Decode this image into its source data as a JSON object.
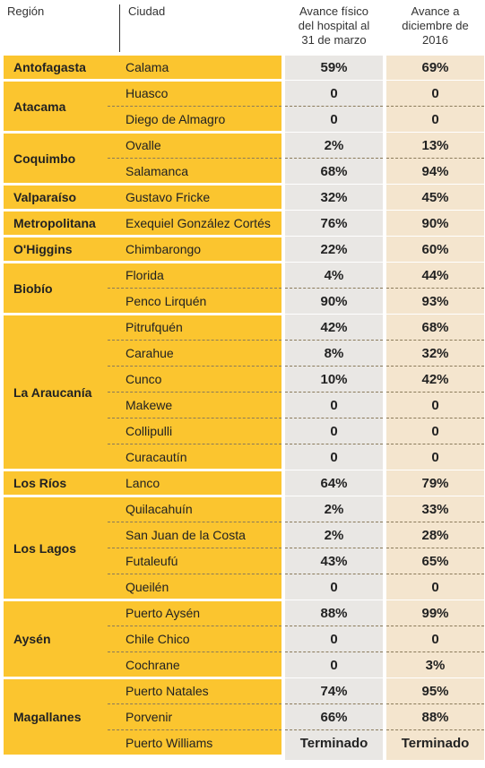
{
  "table": {
    "header": [
      "Región",
      "Ciudad",
      "Avance físico del hospital al 31 de marzo",
      "Avance a diciembre de 2016"
    ],
    "groups": [
      {
        "region": "Antofagasta",
        "rows": [
          [
            "Calama",
            "59%",
            "69%"
          ]
        ]
      },
      {
        "region": "Atacama",
        "rows": [
          [
            "Huasco",
            "0",
            "0"
          ],
          [
            "Diego de Almagro",
            "0",
            "0"
          ]
        ]
      },
      {
        "region": "Coquimbo",
        "rows": [
          [
            "Ovalle",
            "2%",
            "13%"
          ],
          [
            "Salamanca",
            "68%",
            "94%"
          ]
        ]
      },
      {
        "region": "Valparaíso",
        "rows": [
          [
            "Gustavo Fricke",
            "32%",
            "45%"
          ]
        ]
      },
      {
        "region": "Metropolitana",
        "rows": [
          [
            "Exequiel González Cortés",
            "76%",
            "90%"
          ]
        ]
      },
      {
        "region": "O'Higgins",
        "rows": [
          [
            "Chimbarongo",
            "22%",
            "60%"
          ]
        ]
      },
      {
        "region": "Biobío",
        "rows": [
          [
            "Florida",
            "4%",
            "44%"
          ],
          [
            "Penco Lirquén",
            "90%",
            "93%"
          ]
        ]
      },
      {
        "region": "La Araucanía",
        "rows": [
          [
            "Pitrufquén",
            "42%",
            "68%"
          ],
          [
            "Carahue",
            "8%",
            "32%"
          ],
          [
            "Cunco",
            "10%",
            "42%"
          ],
          [
            "Makewe",
            "0",
            "0"
          ],
          [
            "Collipulli",
            "0",
            "0"
          ],
          [
            "Curacautín",
            "0",
            "0"
          ]
        ]
      },
      {
        "region": "Los Ríos",
        "rows": [
          [
            "Lanco",
            "64%",
            "79%"
          ]
        ]
      },
      {
        "region": "Los Lagos",
        "rows": [
          [
            "Quilacahuín",
            "2%",
            "33%"
          ],
          [
            "San Juan de la Costa",
            "2%",
            "28%"
          ],
          [
            "Futaleufú",
            "43%",
            "65%"
          ],
          [
            "Queilén",
            "0",
            "0"
          ]
        ]
      },
      {
        "region": "Aysén",
        "rows": [
          [
            "Puerto Aysén",
            "88%",
            "99%"
          ],
          [
            "Chile Chico",
            "0",
            "0"
          ],
          [
            "Cochrane",
            "0",
            "3%"
          ]
        ]
      },
      {
        "region": "Magallanes",
        "rows": [
          [
            "Puerto Natales",
            "74%",
            "95%"
          ],
          [
            "Porvenir",
            "66%",
            "88%"
          ],
          [
            "Puerto Williams",
            "Terminado",
            "Terminado"
          ]
        ]
      }
    ]
  }
}
